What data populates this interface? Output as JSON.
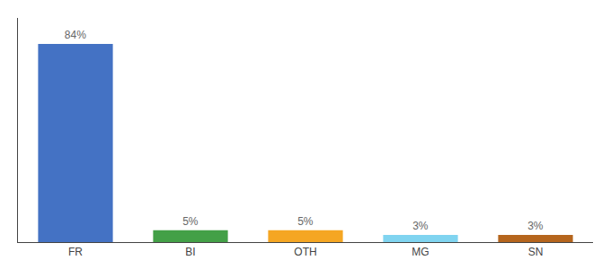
{
  "chart_data": {
    "type": "bar",
    "categories": [
      "FR",
      "BI",
      "OTH",
      "MG",
      "SN"
    ],
    "values": [
      84,
      5,
      5,
      3,
      3
    ],
    "value_labels": [
      "84%",
      "5%",
      "5%",
      "3%",
      "3%"
    ],
    "data_labels": true,
    "colors": [
      "#4472c4",
      "#43a047",
      "#f5a623",
      "#80d4f0",
      "#b5651d"
    ],
    "ylim": [
      0,
      95
    ],
    "grid": false,
    "tick_labels": "x"
  }
}
